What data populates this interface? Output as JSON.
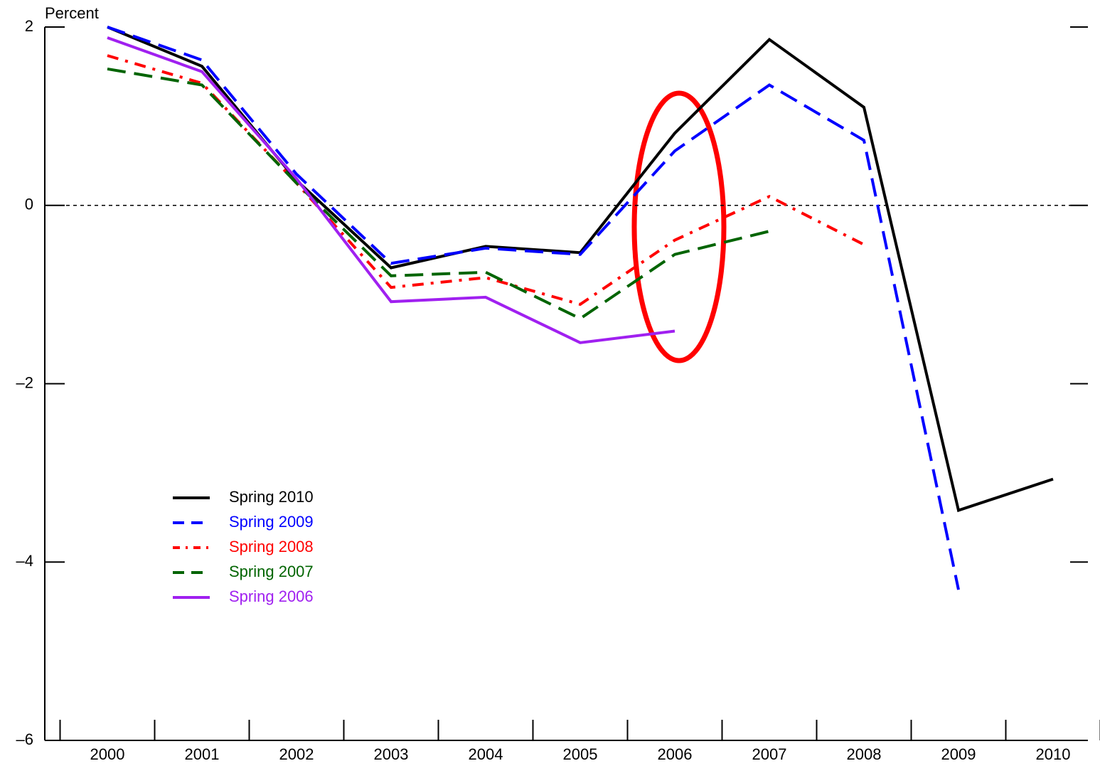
{
  "chart_data": {
    "type": "line",
    "y_label": "Percent",
    "categories": [
      "2000",
      "2001",
      "2002",
      "2003",
      "2004",
      "2005",
      "2006",
      "2007",
      "2008",
      "2009",
      "2010"
    ],
    "series": [
      {
        "name": "Spring 2010",
        "color": "#000000",
        "style": "solid",
        "values": [
          2.0,
          1.56,
          0.28,
          -0.7,
          -0.46,
          -0.53,
          0.81,
          1.86,
          1.1,
          -3.42,
          -3.07
        ]
      },
      {
        "name": "Spring 2009",
        "color": "#0000ff",
        "style": "dashed",
        "values": [
          2.0,
          1.63,
          0.35,
          -0.65,
          -0.48,
          -0.55,
          0.61,
          1.35,
          0.73,
          -4.31,
          null
        ]
      },
      {
        "name": "Spring 2008",
        "color": "#ff0000",
        "style": "dashdot",
        "values": [
          1.68,
          1.37,
          0.25,
          -0.92,
          -0.81,
          -1.11,
          -0.39,
          0.1,
          -0.44,
          null,
          null
        ]
      },
      {
        "name": "Spring 2007",
        "color": "#006400",
        "style": "dashed",
        "values": [
          1.53,
          1.35,
          0.25,
          -0.79,
          -0.75,
          -1.27,
          -0.55,
          -0.29,
          null,
          null,
          null
        ]
      },
      {
        "name": "Spring 2006",
        "color": "#a020f0",
        "style": "solid",
        "values": [
          1.88,
          1.5,
          0.3,
          -1.08,
          -1.03,
          -1.54,
          -1.41,
          null,
          null,
          null,
          null
        ]
      }
    ],
    "ylim": [
      -6,
      2
    ],
    "yticks": [
      {
        "value": -6,
        "label": "–6"
      },
      {
        "value": -4,
        "label": "–4"
      },
      {
        "value": -2,
        "label": "–2"
      },
      0,
      2
    ]
  }
}
